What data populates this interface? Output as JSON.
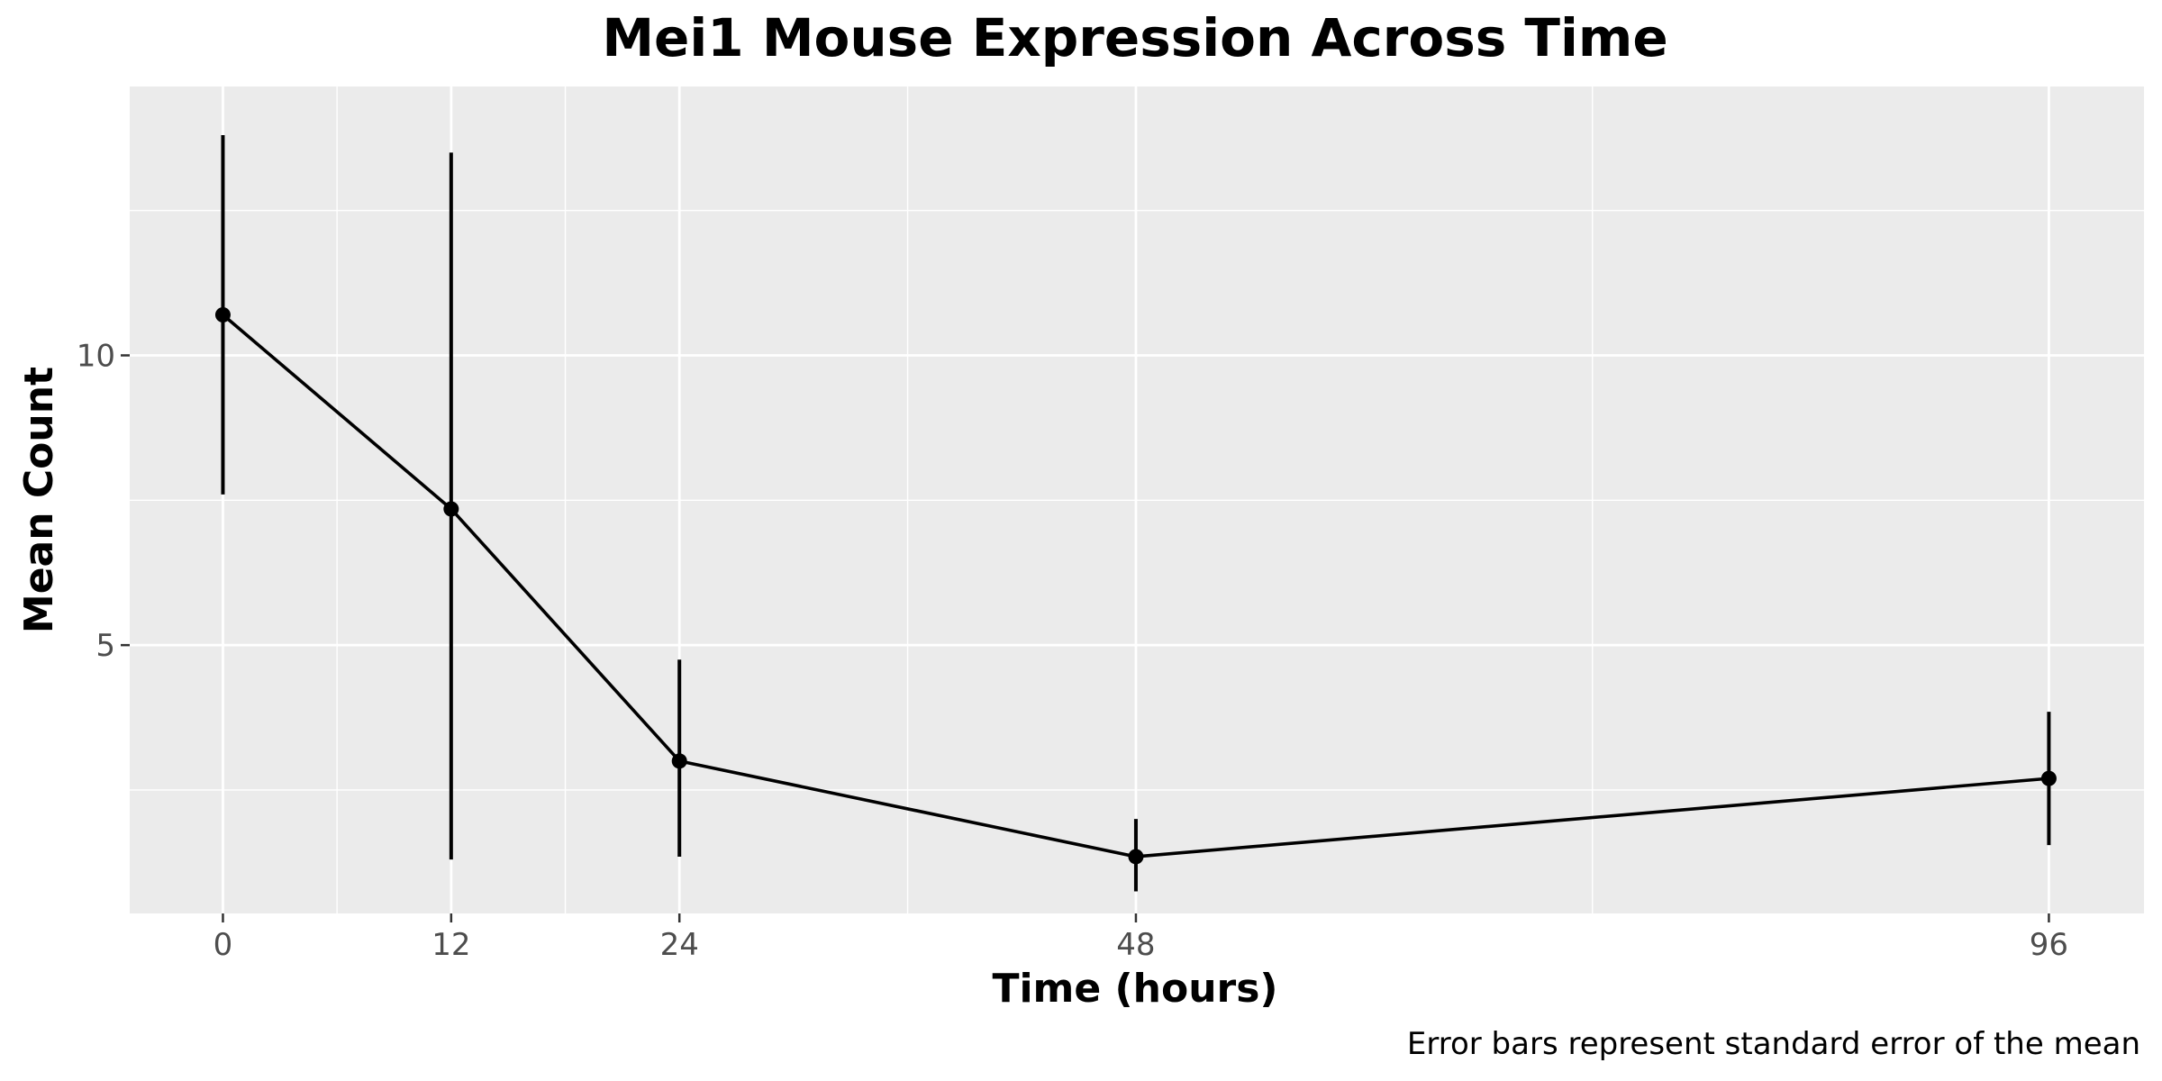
{
  "chart_data": {
    "type": "line",
    "title": "Mei1 Mouse Expression Across Time",
    "xlabel": "Time (hours)",
    "ylabel": "Mean Count",
    "caption": "Error bars represent standard error of the mean",
    "x": [
      0,
      12,
      24,
      48,
      96
    ],
    "x_ticks": [
      "0",
      "12",
      "24",
      "48",
      "96"
    ],
    "xlim": [
      -4.9,
      101
    ],
    "y_ticks": [
      5,
      10
    ],
    "ylim": [
      0.37,
      14.64
    ],
    "series": [
      {
        "values": [
          10.7,
          7.35,
          3.0,
          1.35,
          2.7
        ],
        "error_low": [
          7.6,
          1.3,
          1.35,
          0.75,
          1.55
        ],
        "error_high": [
          13.8,
          13.5,
          4.75,
          2.0,
          3.85
        ]
      }
    ],
    "grid": true,
    "legend": "none",
    "colors": {
      "panel_background": "#ebebeb",
      "grid_line": "#ffffff",
      "series": "#000000",
      "tick_label": "#4d4d4d",
      "tick_mark": "#333333"
    }
  }
}
